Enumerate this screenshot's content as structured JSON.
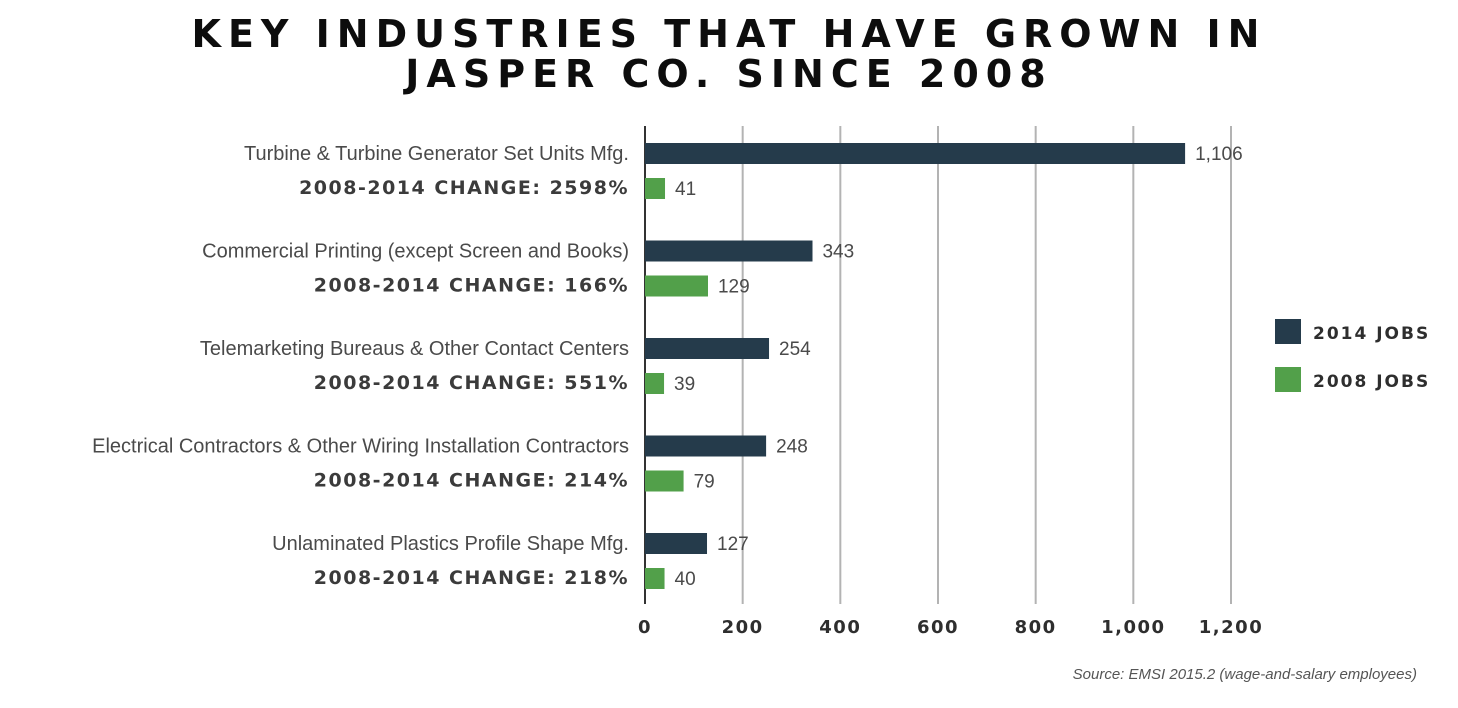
{
  "chart_data": {
    "type": "bar",
    "orientation": "horizontal",
    "title_lines": [
      "KEY INDUSTRIES THAT HAVE GROWN IN",
      "JASPER CO. SINCE 2008"
    ],
    "categories": [
      "Turbine & Turbine Generator Set Units Mfg.",
      "Commercial Printing (except Screen and Books)",
      "Telemarketing Bureaus & Other Contact Centers",
      "Electrical Contractors & Other Wiring Installation Contractors",
      "Unlaminated Plastics Profile Shape Mfg."
    ],
    "change_labels": [
      "2008-2014 CHANGE: 2598%",
      "2008-2014 CHANGE: 166%",
      "2008-2014 CHANGE: 551%",
      "2008-2014 CHANGE: 214%",
      "2008-2014 CHANGE: 218%"
    ],
    "series": [
      {
        "name": "2014 JOBS",
        "color": "#253b4b",
        "values": [
          1106,
          343,
          254,
          248,
          127
        ],
        "labels": [
          "1,106",
          "343",
          "254",
          "248",
          "127"
        ]
      },
      {
        "name": "2008 JOBS",
        "color": "#52a04a",
        "values": [
          41,
          129,
          39,
          79,
          40
        ],
        "labels": [
          "41",
          "129",
          "39",
          "79",
          "40"
        ]
      }
    ],
    "xlim": [
      0,
      1200
    ],
    "xticks": [
      0,
      200,
      400,
      600,
      800,
      1000,
      1200
    ],
    "xtick_labels": [
      "0",
      "200",
      "400",
      "600",
      "800",
      "1,000",
      "1,200"
    ],
    "grid": "vertical",
    "legend_position": "right"
  },
  "source_note": "Source: EMSI 2015.2 (wage-and-salary employees)"
}
